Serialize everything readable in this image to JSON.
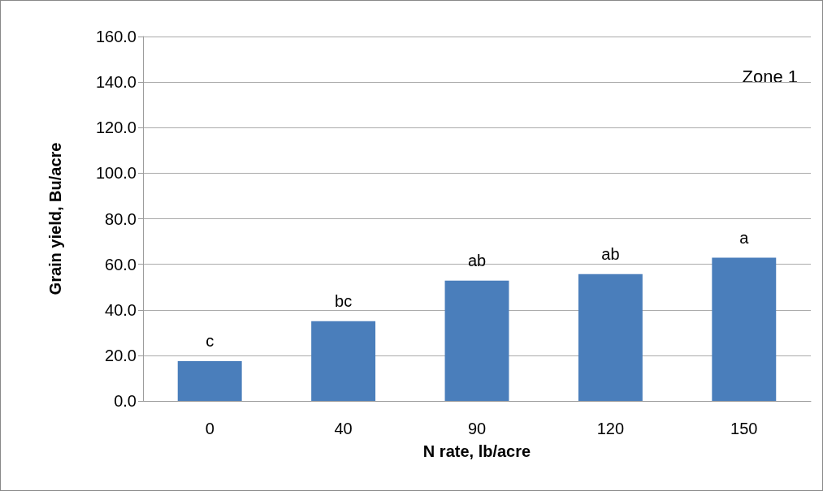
{
  "chart_data": {
    "type": "bar",
    "xlabel": "N rate, lb/acre",
    "ylabel": "Grain yield, Bu/acre",
    "categories": [
      "0",
      "40",
      "90",
      "120",
      "150"
    ],
    "values": [
      17.5,
      35.0,
      52.8,
      55.7,
      62.9
    ],
    "color": "#4a7ebb",
    "ylim": [
      0,
      160
    ],
    "yticks": [
      {
        "value": 0,
        "label": "0.0"
      },
      {
        "value": 20,
        "label": "20.0"
      },
      {
        "value": 40,
        "label": "40.0"
      },
      {
        "value": 60,
        "label": "60.0"
      },
      {
        "value": 80,
        "label": "80.0"
      },
      {
        "value": 100,
        "label": "100.0"
      },
      {
        "value": 120,
        "label": "120.0"
      },
      {
        "value": 140,
        "label": "140.0"
      },
      {
        "value": 160,
        "label": "160.0"
      }
    ],
    "grid": "y",
    "annotations": [
      {
        "text": "c",
        "x": "0",
        "y": 17.5
      },
      {
        "text": "bc",
        "x": "40",
        "y": 35.0
      },
      {
        "text": "ab",
        "x": "90",
        "y": 52.8
      },
      {
        "text": "ab",
        "x": "120",
        "y": 55.7
      },
      {
        "text": "a",
        "x": "150",
        "y": 62.9
      },
      "Zone 1"
    ]
  }
}
